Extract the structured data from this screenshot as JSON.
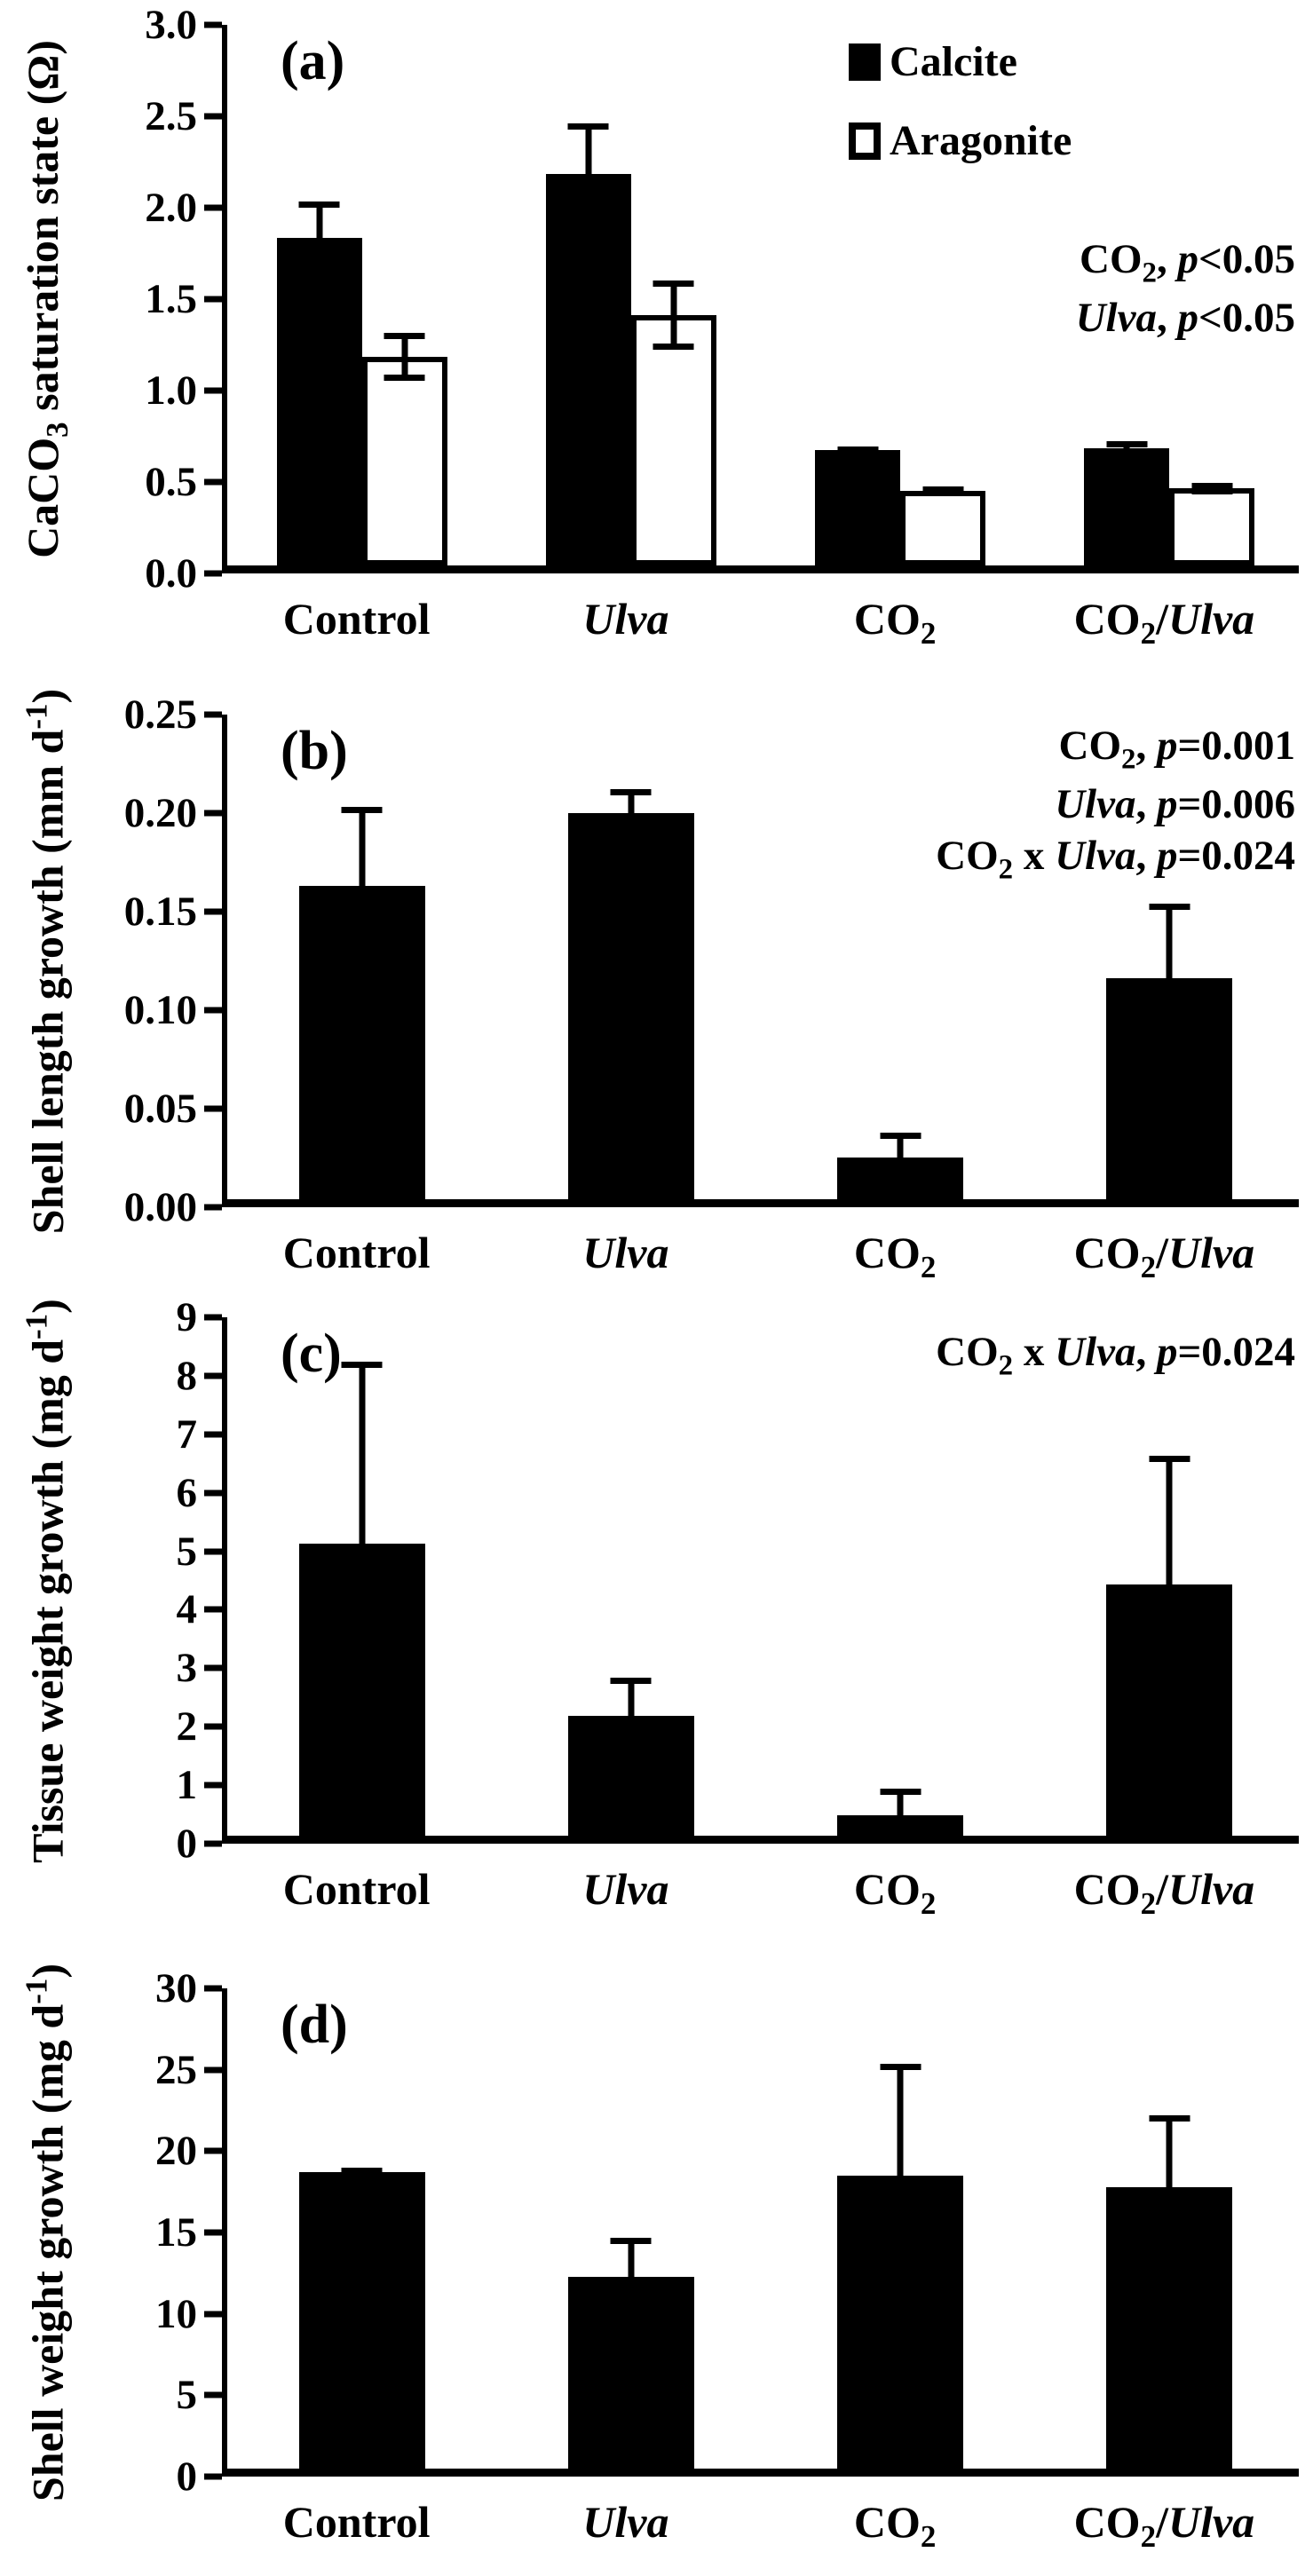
{
  "figure": {
    "background": "#ffffff",
    "bar_color_filled": "#000000",
    "bar_color_open": "#ffffff",
    "panel_letters": [
      "(a)",
      "(b)",
      "(c)",
      "(d)"
    ]
  },
  "chart_data": [
    {
      "type": "bar",
      "panel_letter": "(a)",
      "ylabel": "CaCO~3~ saturation state (Ω)",
      "ylim": [
        0,
        3.0
      ],
      "yticks": [
        "0.0",
        "0.5",
        "1.0",
        "1.5",
        "2.0",
        "2.5",
        "3.0"
      ],
      "categories": [
        "Control",
        "*Ulva*",
        "CO~2~",
        "CO~2~/*Ulva*"
      ],
      "grid": false,
      "legend_position": "top-right",
      "legend": [
        {
          "label": "Calcite",
          "swatch": "black"
        },
        {
          "label": "Aragonite",
          "swatch": "white"
        }
      ],
      "series": [
        {
          "name": "Calcite",
          "color": "black",
          "values": [
            1.79,
            2.14,
            0.63,
            0.64
          ],
          "errors": [
            0.2,
            0.28,
            0.02,
            0.04
          ],
          "error_both_directions": false
        },
        {
          "name": "Aragonite",
          "color": "white",
          "values": [
            1.14,
            1.37,
            0.41,
            0.42
          ],
          "errors": [
            0.13,
            0.19,
            0.02,
            0.03
          ],
          "error_both_directions": true
        }
      ],
      "annotations": [
        "CO~2~, *p*<0.05",
        "*Ulva*, *p*<0.05"
      ]
    },
    {
      "type": "bar",
      "panel_letter": "(b)",
      "ylabel": "Shell length growth (mm d^-1^)",
      "ylim": [
        0,
        0.25
      ],
      "yticks": [
        "0.00",
        "0.05",
        "0.10",
        "0.15",
        "0.20",
        "0.25"
      ],
      "categories": [
        "Control",
        "*Ulva*",
        "CO~2~",
        "CO~2~/*Ulva*"
      ],
      "grid": false,
      "legend": [],
      "series": [
        {
          "name": "Shell length growth",
          "color": "black",
          "values": [
            0.159,
            0.196,
            0.021,
            0.112
          ],
          "errors": [
            0.04,
            0.012,
            0.013,
            0.038
          ],
          "error_both_directions": false
        }
      ],
      "annotations": [
        "CO~2~, *p*=0.001",
        "*Ulva*, *p*=0.006",
        "CO~2~ x *Ulva*, *p*=0.024"
      ]
    },
    {
      "type": "bar",
      "panel_letter": "(c)",
      "ylabel": "Tissue weight growth (mg d^-1^)",
      "ylim": [
        0,
        9
      ],
      "yticks": [
        "0",
        "1",
        "2",
        "3",
        "4",
        "5",
        "6",
        "7",
        "8",
        "9"
      ],
      "categories": [
        "Control",
        "*Ulva*",
        "CO~2~",
        "CO~2~/*Ulva*"
      ],
      "grid": false,
      "legend": [],
      "series": [
        {
          "name": "Tissue weight growth",
          "color": "black",
          "values": [
            5.0,
            2.05,
            0.35,
            4.3
          ],
          "errors": [
            3.1,
            0.65,
            0.45,
            2.2
          ],
          "error_both_directions": false
        }
      ],
      "annotations": [
        "CO~2~ x *Ulva*, *p*=0.024"
      ]
    },
    {
      "type": "bar",
      "panel_letter": "(d)",
      "ylabel": "Shell weight growth (mg d^-1^)",
      "ylim": [
        0,
        30
      ],
      "yticks": [
        "0",
        "5",
        "10",
        "15",
        "20",
        "25",
        "30"
      ],
      "categories": [
        "Control",
        "*Ulva*",
        "CO~2~",
        "CO~2~/*Ulva*"
      ],
      "grid": false,
      "legend": [],
      "series": [
        {
          "name": "Shell weight growth",
          "color": "black",
          "values": [
            18.2,
            11.8,
            18.0,
            17.3
          ],
          "errors": [
            0.3,
            2.4,
            6.9,
            4.4
          ],
          "error_both_directions": false
        }
      ],
      "annotations": []
    }
  ]
}
